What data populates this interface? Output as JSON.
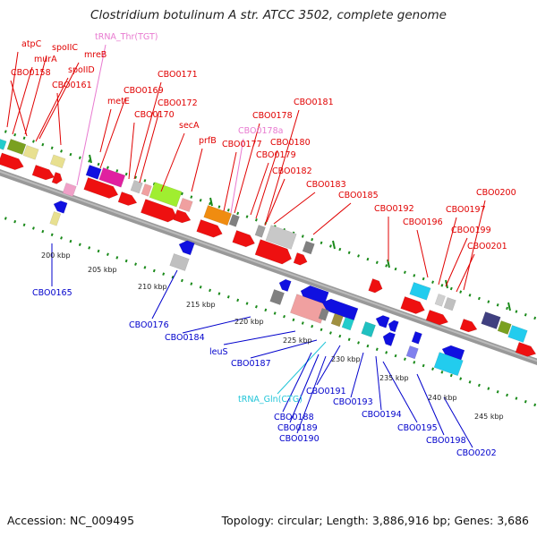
{
  "title": "Clostridium botulinum A str. ATCC 3502, complete genome",
  "footer": {
    "accession": "Accession: NC_009495",
    "summary": "Topology: circular; Length: 3,886,916 bp; Genes: 3,686"
  },
  "colors": {
    "forward_label": "#e00000",
    "reverse_label": "#0000cc",
    "trna_forward": "#e87ad0",
    "trna_reverse": "#22c5d8",
    "backbone": "#888888",
    "dotted_track": "#1a8a1a"
  },
  "scale_ticks": [
    "200 kbp",
    "205 kbp",
    "210 kbp",
    "215 kbp",
    "220 kbp",
    "225 kbp",
    "230 kbp",
    "235 kbp",
    "240 kbp",
    "245 kbp"
  ],
  "forward_labels": [
    "atpC",
    "spoIIC",
    "murA",
    "mreB",
    "CBO0158",
    "spoIID",
    "CBO0161",
    "tRNA_Thr(TGT)",
    "CBO0171",
    "CBO0169",
    "metE",
    "CBO0172",
    "CBO0170",
    "secA",
    "prfB",
    "CBO0178",
    "CBO0178a",
    "CBO0177",
    "CBO0180",
    "CBO0181",
    "CBO0179",
    "CBO0182",
    "CBO0183",
    "CBO0185",
    "CBO0192",
    "CBO0196",
    "CBO0197",
    "CBO0200",
    "CBO0199",
    "CBO0201"
  ],
  "reverse_labels": [
    "CBO0165",
    "CBO0176",
    "CBO0184",
    "leuS",
    "CBO0187",
    "tRNA_Gln(CTG)",
    "CBO0191",
    "CBO0188",
    "CBO0189",
    "CBO0190",
    "CBO0193",
    "CBO0194",
    "CBO0195",
    "CBO0198",
    "CBO0202"
  ]
}
